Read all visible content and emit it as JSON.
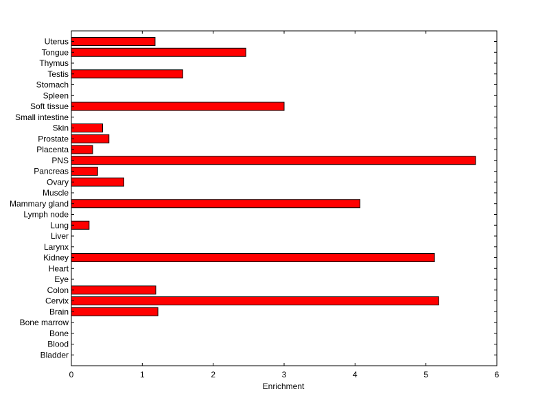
{
  "chart_data": {
    "type": "bar",
    "orientation": "horizontal",
    "categories": [
      "Uterus",
      "Tongue",
      "Thymus",
      "Testis",
      "Stomach",
      "Spleen",
      "Soft tissue",
      "Small intestine",
      "Skin",
      "Prostate",
      "Placenta",
      "PNS",
      "Pancreas",
      "Ovary",
      "Muscle",
      "Mammary gland",
      "Lymph node",
      "Lung",
      "Liver",
      "Larynx",
      "Kidney",
      "Heart",
      "Eye",
      "Colon",
      "Cervix",
      "Brain",
      "Bone marrow",
      "Bone",
      "Blood",
      "Bladder"
    ],
    "values": [
      1.18,
      2.46,
      0,
      1.57,
      0,
      0,
      3.0,
      0,
      0.44,
      0.53,
      0.3,
      5.7,
      0.37,
      0.74,
      0,
      4.07,
      0,
      0.25,
      0,
      0,
      5.12,
      0,
      0,
      1.19,
      5.18,
      1.22,
      0,
      0,
      0,
      0
    ],
    "title": "",
    "xlabel": "Enrichment",
    "ylabel": "",
    "xlim": [
      0,
      6
    ],
    "xticks": [
      "0",
      "1",
      "2",
      "3",
      "4",
      "5",
      "6"
    ],
    "grid": false,
    "bar_color": "#ff0000",
    "bar_edge_color": "#000000"
  }
}
